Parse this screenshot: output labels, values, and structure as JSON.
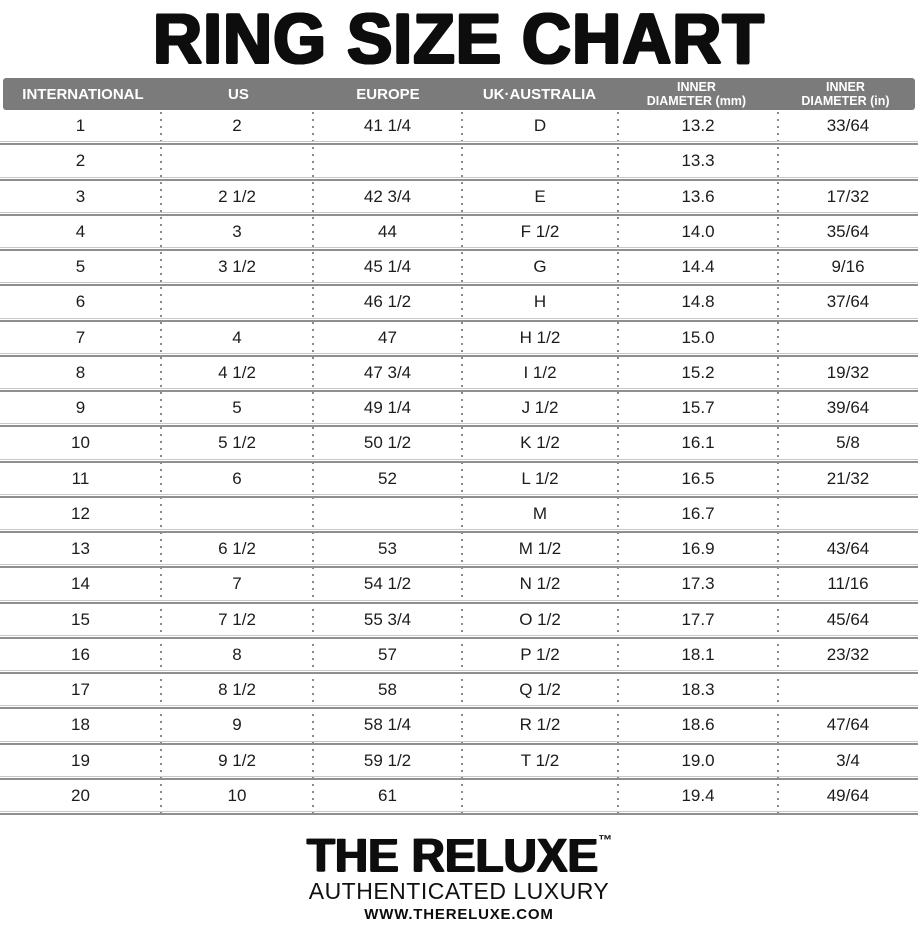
{
  "chart_data": {
    "type": "table",
    "title": "RING SIZE CHART",
    "columns": [
      "INTERNATIONAL",
      "US",
      "EUROPE",
      "UK·AUSTRALIA",
      "INNER\nDIAMETER (mm)",
      "INNER\nDIAMETER (in)"
    ],
    "rows": [
      [
        "1",
        "2",
        "41 1/4",
        "D",
        "13.2",
        "33/64"
      ],
      [
        "2",
        "",
        "",
        "",
        "13.3",
        ""
      ],
      [
        "3",
        "2 1/2",
        "42 3/4",
        "E",
        "13.6",
        "17/32"
      ],
      [
        "4",
        "3",
        "44",
        "F 1/2",
        "14.0",
        "35/64"
      ],
      [
        "5",
        "3 1/2",
        "45 1/4",
        "G",
        "14.4",
        "9/16"
      ],
      [
        "6",
        "",
        "46 1/2",
        "H",
        "14.8",
        "37/64"
      ],
      [
        "7",
        "4",
        "47",
        "H 1/2",
        "15.0",
        ""
      ],
      [
        "8",
        "4 1/2",
        "47 3/4",
        "I 1/2",
        "15.2",
        "19/32"
      ],
      [
        "9",
        "5",
        "49 1/4",
        "J 1/2",
        "15.7",
        "39/64"
      ],
      [
        "10",
        "5 1/2",
        "50 1/2",
        "K 1/2",
        "16.1",
        "5/8"
      ],
      [
        "11",
        "6",
        "52",
        "L 1/2",
        "16.5",
        "21/32"
      ],
      [
        "12",
        "",
        "",
        "M",
        "16.7",
        ""
      ],
      [
        "13",
        "6 1/2",
        "53",
        "M 1/2",
        "16.9",
        "43/64"
      ],
      [
        "14",
        "7",
        "54 1/2",
        "N 1/2",
        "17.3",
        "11/16"
      ],
      [
        "15",
        "7 1/2",
        "55 3/4",
        "O 1/2",
        "17.7",
        "45/64"
      ],
      [
        "16",
        "8",
        "57",
        "P 1/2",
        "18.1",
        "23/32"
      ],
      [
        "17",
        "8 1/2",
        "58",
        "Q 1/2",
        "18.3",
        ""
      ],
      [
        "18",
        "9",
        "58 1/4",
        "R 1/2",
        "18.6",
        "47/64"
      ],
      [
        "19",
        "9 1/2",
        "59 1/2",
        "T 1/2",
        "19.0",
        "3/4"
      ],
      [
        "20",
        "10",
        "61",
        "",
        "19.4",
        "49/64"
      ]
    ]
  },
  "footer": {
    "brand": "THE RELUXE",
    "trademark": "™",
    "tagline": "AUTHENTICATED LUXURY",
    "website": "WWW.THERELUXE.COM"
  },
  "colors": {
    "header_bg": "#7b7b7b",
    "header_text": "#ffffff",
    "separator_light": "#c8c8c8",
    "separator_dark": "#8f8f8f",
    "dots": "#8a8a8a"
  }
}
